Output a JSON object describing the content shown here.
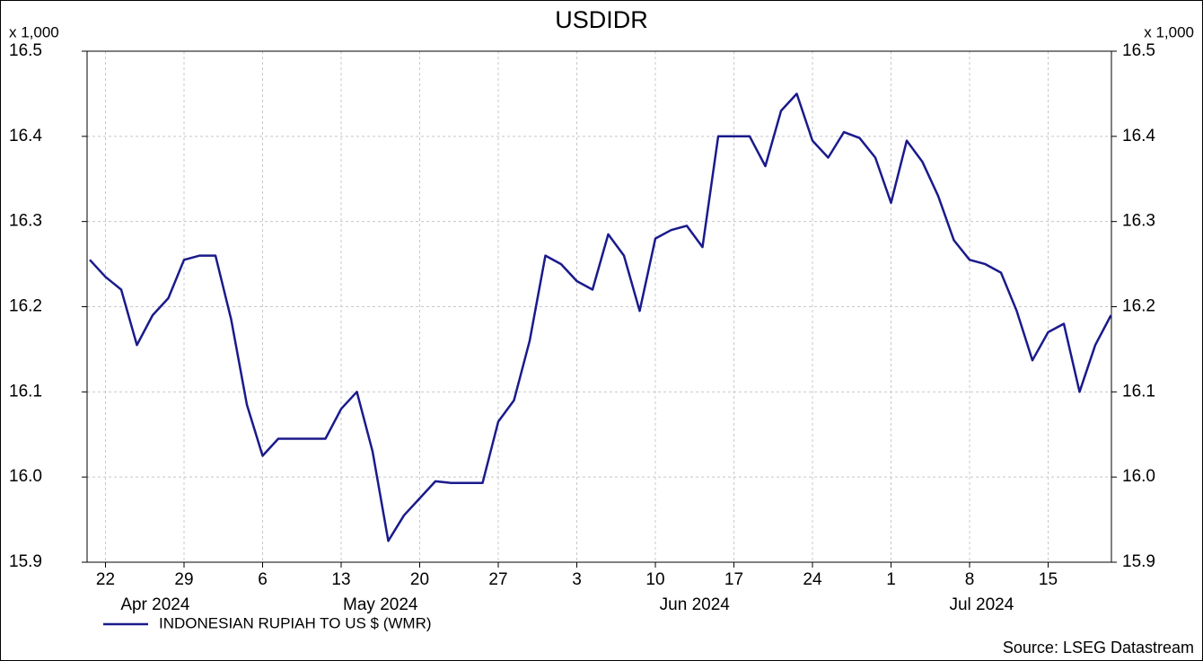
{
  "chart_data": {
    "type": "line",
    "title": "USDIDR",
    "y_unit": "x 1,000",
    "source": "Source: LSEG Datastream",
    "months": [
      "Apr 2024",
      "May 2024",
      "Jun 2024",
      "Jul 2024"
    ],
    "categories": [
      null,
      "22",
      null,
      null,
      null,
      null,
      "29",
      null,
      null,
      null,
      null,
      "6",
      null,
      null,
      null,
      null,
      "13",
      null,
      null,
      null,
      null,
      "20",
      null,
      null,
      null,
      null,
      "27",
      null,
      null,
      null,
      null,
      "3",
      null,
      null,
      null,
      null,
      "10",
      null,
      null,
      null,
      null,
      "17",
      null,
      null,
      null,
      null,
      "24",
      null,
      null,
      null,
      null,
      "1",
      null,
      null,
      null,
      null,
      "8",
      null,
      null,
      null,
      null,
      "15",
      null,
      null,
      null,
      null
    ],
    "series": [
      {
        "name": "INDONESIAN RUPIAH TO US $ (WMR)",
        "color": "#1a1a8c",
        "values": [
          16.255,
          16.235,
          16.22,
          16.155,
          16.19,
          16.21,
          16.255,
          16.26,
          16.26,
          16.185,
          16.085,
          16.025,
          16.045,
          16.045,
          16.045,
          16.045,
          16.08,
          16.1,
          16.03,
          15.925,
          15.955,
          15.975,
          15.995,
          15.993,
          15.993,
          15.993,
          16.065,
          16.09,
          16.16,
          16.26,
          16.25,
          16.23,
          16.22,
          16.285,
          16.26,
          16.195,
          16.28,
          16.29,
          16.295,
          16.27,
          16.4,
          16.4,
          16.4,
          16.365,
          16.43,
          16.45,
          16.395,
          16.375,
          16.405,
          16.398,
          16.375,
          16.322,
          16.395,
          16.37,
          16.33,
          16.278,
          16.255,
          16.25,
          16.24,
          16.195,
          16.137,
          16.17,
          16.18,
          16.1,
          16.155,
          16.19
        ]
      }
    ],
    "ylim": [
      15.9,
      16.5
    ],
    "yticks": [
      15.9,
      {
        "value": 16,
        "label": "16.0"
      },
      16.1,
      16.2,
      16.3,
      16.4,
      16.5
    ],
    "grid": true
  }
}
